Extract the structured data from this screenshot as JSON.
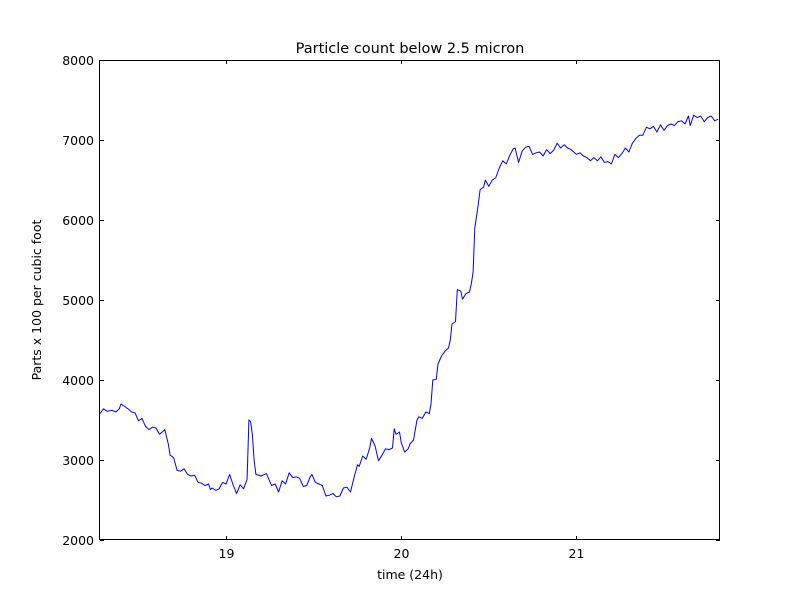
{
  "chart_data": {
    "type": "line",
    "title": "Particle count below 2.5 micron",
    "xlabel": "time (24h)",
    "ylabel": "Parts x 100 per cubic foot",
    "xlim": [
      18.28,
      21.82
    ],
    "ylim": [
      2000,
      8000
    ],
    "xticks": [
      19,
      20,
      21
    ],
    "xtick_labels": [
      "19",
      "20",
      "21"
    ],
    "yticks": [
      2000,
      3000,
      4000,
      5000,
      6000,
      7000,
      8000
    ],
    "ytick_labels": [
      "2000",
      "3000",
      "4000",
      "5000",
      "6000",
      "7000",
      "8000"
    ],
    "grid": false,
    "line_color": "#0000ff",
    "series": [
      {
        "points": [
          [
            18.28,
            3580
          ],
          [
            18.3,
            3640
          ],
          [
            18.32,
            3610
          ],
          [
            18.35,
            3620
          ],
          [
            18.37,
            3600
          ],
          [
            18.39,
            3640
          ],
          [
            18.4,
            3700
          ],
          [
            18.42,
            3670
          ],
          [
            18.44,
            3640
          ],
          [
            18.46,
            3600
          ],
          [
            18.48,
            3590
          ],
          [
            18.5,
            3490
          ],
          [
            18.52,
            3520
          ],
          [
            18.54,
            3420
          ],
          [
            18.56,
            3380
          ],
          [
            18.58,
            3410
          ],
          [
            18.6,
            3400
          ],
          [
            18.62,
            3320
          ],
          [
            18.65,
            3380
          ],
          [
            18.67,
            3200
          ],
          [
            18.68,
            3060
          ],
          [
            18.7,
            3030
          ],
          [
            18.72,
            2870
          ],
          [
            18.74,
            2860
          ],
          [
            18.76,
            2890
          ],
          [
            18.78,
            2820
          ],
          [
            18.8,
            2800
          ],
          [
            18.82,
            2810
          ],
          [
            18.84,
            2720
          ],
          [
            18.86,
            2710
          ],
          [
            18.88,
            2680
          ],
          [
            18.9,
            2700
          ],
          [
            18.91,
            2630
          ],
          [
            18.92,
            2650
          ],
          [
            18.94,
            2620
          ],
          [
            18.96,
            2640
          ],
          [
            18.98,
            2720
          ],
          [
            19.0,
            2700
          ],
          [
            19.02,
            2820
          ],
          [
            19.04,
            2690
          ],
          [
            19.06,
            2580
          ],
          [
            19.08,
            2690
          ],
          [
            19.1,
            2640
          ],
          [
            19.12,
            2760
          ],
          [
            19.13,
            3500
          ],
          [
            19.14,
            3480
          ],
          [
            19.15,
            3310
          ],
          [
            19.16,
            3000
          ],
          [
            19.17,
            2820
          ],
          [
            19.2,
            2800
          ],
          [
            19.23,
            2830
          ],
          [
            19.26,
            2680
          ],
          [
            19.28,
            2700
          ],
          [
            19.3,
            2600
          ],
          [
            19.32,
            2740
          ],
          [
            19.34,
            2700
          ],
          [
            19.36,
            2840
          ],
          [
            19.38,
            2780
          ],
          [
            19.4,
            2790
          ],
          [
            19.42,
            2770
          ],
          [
            19.44,
            2670
          ],
          [
            19.46,
            2680
          ],
          [
            19.48,
            2790
          ],
          [
            19.49,
            2820
          ],
          [
            19.51,
            2720
          ],
          [
            19.53,
            2700
          ],
          [
            19.55,
            2680
          ],
          [
            19.57,
            2550
          ],
          [
            19.59,
            2560
          ],
          [
            19.61,
            2580
          ],
          [
            19.63,
            2540
          ],
          [
            19.65,
            2550
          ],
          [
            19.67,
            2650
          ],
          [
            19.69,
            2660
          ],
          [
            19.71,
            2600
          ],
          [
            19.73,
            2780
          ],
          [
            19.75,
            2940
          ],
          [
            19.76,
            2920
          ],
          [
            19.78,
            3050
          ],
          [
            19.8,
            3010
          ],
          [
            19.82,
            3150
          ],
          [
            19.83,
            3270
          ],
          [
            19.85,
            3180
          ],
          [
            19.87,
            2990
          ],
          [
            19.89,
            3060
          ],
          [
            19.91,
            3140
          ],
          [
            19.93,
            3130
          ],
          [
            19.95,
            3150
          ],
          [
            19.96,
            3390
          ],
          [
            19.97,
            3320
          ],
          [
            19.99,
            3350
          ],
          [
            20.0,
            3220
          ],
          [
            20.02,
            3100
          ],
          [
            20.04,
            3140
          ],
          [
            20.05,
            3200
          ],
          [
            20.07,
            3250
          ],
          [
            20.09,
            3500
          ],
          [
            20.1,
            3540
          ],
          [
            20.12,
            3520
          ],
          [
            20.14,
            3600
          ],
          [
            20.16,
            3580
          ],
          [
            20.17,
            3700
          ],
          [
            20.18,
            4000
          ],
          [
            20.2,
            4010
          ],
          [
            20.21,
            4200
          ],
          [
            20.23,
            4300
          ],
          [
            20.25,
            4360
          ],
          [
            20.27,
            4400
          ],
          [
            20.28,
            4500
          ],
          [
            20.29,
            4700
          ],
          [
            20.31,
            4730
          ],
          [
            20.32,
            5130
          ],
          [
            20.34,
            5110
          ],
          [
            20.35,
            5010
          ],
          [
            20.37,
            5080
          ],
          [
            20.39,
            5100
          ],
          [
            20.4,
            5200
          ],
          [
            20.41,
            5350
          ],
          [
            20.42,
            5900
          ],
          [
            20.43,
            6050
          ],
          [
            20.44,
            6200
          ],
          [
            20.45,
            6380
          ],
          [
            20.47,
            6410
          ],
          [
            20.48,
            6500
          ],
          [
            20.5,
            6420
          ],
          [
            20.52,
            6500
          ],
          [
            20.54,
            6530
          ],
          [
            20.56,
            6650
          ],
          [
            20.58,
            6740
          ],
          [
            20.6,
            6700
          ],
          [
            20.62,
            6810
          ],
          [
            20.64,
            6890
          ],
          [
            20.65,
            6900
          ],
          [
            20.67,
            6720
          ],
          [
            20.69,
            6860
          ],
          [
            20.71,
            6910
          ],
          [
            20.73,
            6920
          ],
          [
            20.75,
            6820
          ],
          [
            20.77,
            6840
          ],
          [
            20.79,
            6850
          ],
          [
            20.81,
            6800
          ],
          [
            20.83,
            6880
          ],
          [
            20.85,
            6830
          ],
          [
            20.87,
            6870
          ],
          [
            20.89,
            6960
          ],
          [
            20.91,
            6900
          ],
          [
            20.93,
            6940
          ],
          [
            20.95,
            6900
          ],
          [
            20.97,
            6880
          ],
          [
            21.0,
            6820
          ],
          [
            21.02,
            6840
          ],
          [
            21.04,
            6800
          ],
          [
            21.06,
            6780
          ],
          [
            21.08,
            6740
          ],
          [
            21.1,
            6780
          ],
          [
            21.12,
            6740
          ],
          [
            21.14,
            6790
          ],
          [
            21.16,
            6720
          ],
          [
            21.18,
            6730
          ],
          [
            21.2,
            6700
          ],
          [
            21.22,
            6820
          ],
          [
            21.24,
            6780
          ],
          [
            21.26,
            6830
          ],
          [
            21.28,
            6900
          ],
          [
            21.3,
            6850
          ],
          [
            21.32,
            6960
          ],
          [
            21.34,
            7020
          ],
          [
            21.36,
            7060
          ],
          [
            21.38,
            7060
          ],
          [
            21.4,
            7160
          ],
          [
            21.42,
            7140
          ],
          [
            21.44,
            7170
          ],
          [
            21.46,
            7100
          ],
          [
            21.48,
            7190
          ],
          [
            21.5,
            7120
          ],
          [
            21.52,
            7180
          ],
          [
            21.54,
            7200
          ],
          [
            21.56,
            7180
          ],
          [
            21.58,
            7230
          ],
          [
            21.6,
            7240
          ],
          [
            21.62,
            7200
          ],
          [
            21.64,
            7300
          ],
          [
            21.65,
            7180
          ],
          [
            21.67,
            7310
          ],
          [
            21.69,
            7280
          ],
          [
            21.71,
            7300
          ],
          [
            21.73,
            7230
          ],
          [
            21.75,
            7280
          ],
          [
            21.77,
            7300
          ],
          [
            21.79,
            7240
          ],
          [
            21.81,
            7260
          ]
        ]
      }
    ]
  }
}
